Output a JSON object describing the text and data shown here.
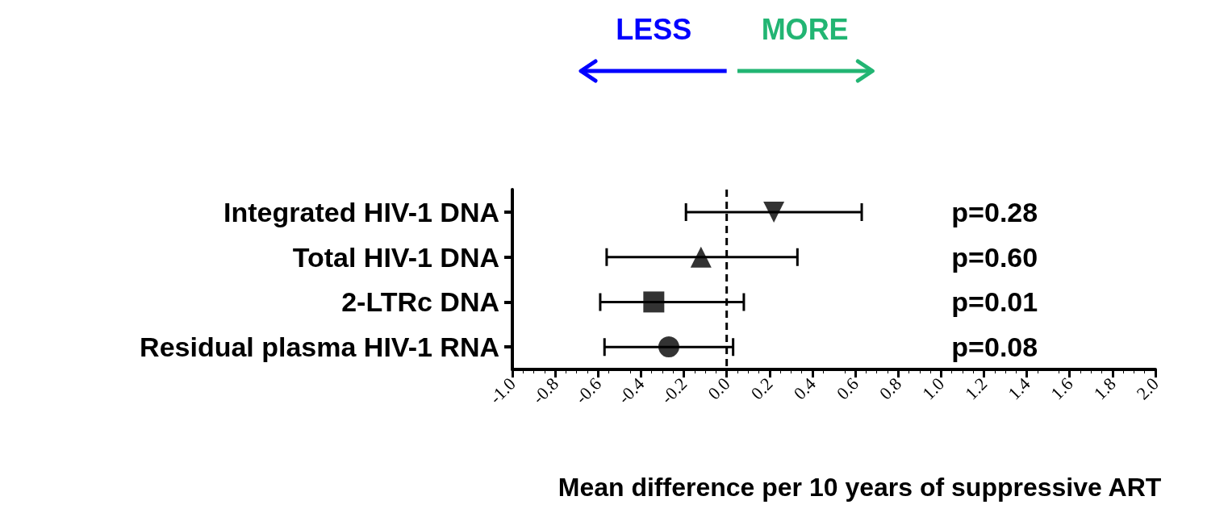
{
  "chart_data": {
    "type": "scatter",
    "orientation": "horizontal",
    "xlabel": "Mean difference per 10 years of suppressive ART",
    "categories": [
      "Integrated HIV-1 DNA",
      "Total HIV-1 DNA",
      "2-LTRc DNA",
      "Residual plasma HIV-1 RNA"
    ],
    "series": [
      {
        "color": "#000000",
        "marker": "triangle-down",
        "values": [
          0.22,
          null,
          null,
          null
        ],
        "errors": [
          [
            -0.19,
            0.63
          ],
          null,
          null,
          null
        ]
      },
      {
        "color": "#000000",
        "marker": "triangle",
        "values": [
          null,
          -0.12,
          null,
          null
        ],
        "errors": [
          null,
          [
            -0.56,
            0.33
          ],
          null,
          null
        ]
      },
      {
        "color": "#000000",
        "marker": "square",
        "values": [
          null,
          null,
          -0.34,
          null
        ],
        "errors": [
          null,
          null,
          [
            -0.59,
            0.08
          ],
          null
        ]
      },
      {
        "color": "#000000",
        "marker": "circle",
        "values": [
          null,
          null,
          null,
          -0.27
        ],
        "errors": [
          null,
          null,
          null,
          [
            -0.57,
            0.03
          ]
        ]
      }
    ],
    "xlim": [
      -1.0,
      2.0
    ],
    "xticks": [
      {
        "value": -1.0,
        "label": "-1.0"
      },
      {
        "value": -0.8,
        "label": "-0.8"
      },
      {
        "value": -0.6,
        "label": "-0.6"
      },
      {
        "value": -0.4,
        "label": "-0.4"
      },
      {
        "value": -0.2,
        "label": "-0.2"
      },
      {
        "value": 0,
        "label": "0.0"
      },
      {
        "value": 0.2,
        "label": "0.2"
      },
      {
        "value": 0.4,
        "label": "0.4"
      },
      {
        "value": 0.6,
        "label": "0.6"
      },
      {
        "value": 0.8,
        "label": "0.8"
      },
      {
        "value": 1.0,
        "label": "1.0"
      },
      {
        "value": 1.2,
        "label": "1.2"
      },
      {
        "value": 1.4,
        "label": "1.4"
      },
      {
        "value": 1.6,
        "label": "1.6"
      },
      {
        "value": 1.8,
        "label": "1.8"
      },
      {
        "value": 2.0,
        "label": "2.0"
      }
    ],
    "ref_lines": [
      {
        "axis": "x",
        "value": 0,
        "label": null,
        "line_style": "dashed",
        "color": "#000000"
      }
    ],
    "grid": false,
    "annotations": [
      "LESS",
      "MORE",
      "p=0.28",
      "p=0.60",
      "p=0.01",
      "p=0.08"
    ]
  }
}
